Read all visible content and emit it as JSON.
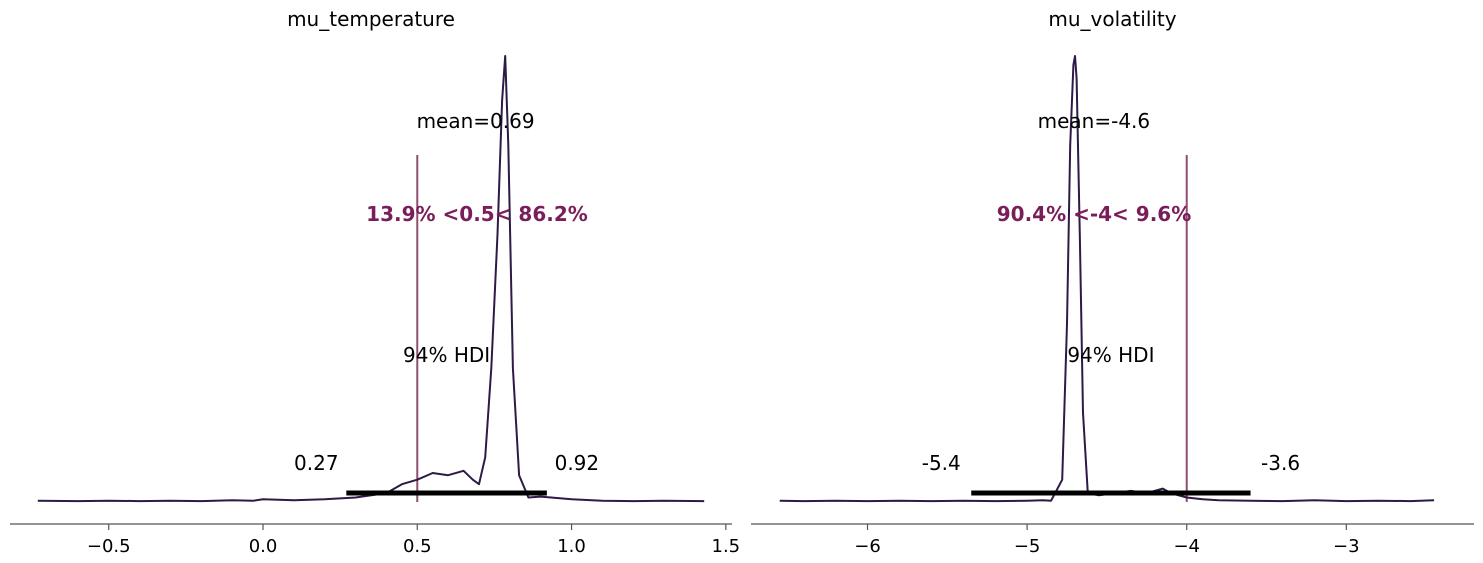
{
  "colors": {
    "kde_line": "#2e1a47",
    "reference_line": "#8c4f6e",
    "reference_text": "#7a1e5a",
    "hdi_bar": "#000000",
    "axis": "#555555"
  },
  "chart_data": [
    {
      "type": "line",
      "title": "mu_temperature",
      "xlim": [
        -0.82,
        1.52
      ],
      "xticks": [
        -0.5,
        0.0,
        0.5,
        1.0,
        1.5
      ],
      "xtick_labels": [
        "−0.5",
        "0.0",
        "0.5",
        "1.0",
        "1.5"
      ],
      "mean_label": "mean=0.69",
      "hdi_label": "94% HDI",
      "hdi": [
        0.27,
        0.92
      ],
      "hdi_low_label": "0.27",
      "hdi_high_label": "0.92",
      "ref_value": 0.5,
      "ref_label": "13.9% <0.5< 86.2%",
      "density": {
        "x": [
          -0.73,
          -0.6,
          -0.5,
          -0.4,
          -0.3,
          -0.2,
          -0.1,
          -0.03,
          0.0,
          0.1,
          0.2,
          0.3,
          0.4,
          0.45,
          0.5,
          0.55,
          0.6,
          0.65,
          0.68,
          0.7,
          0.72,
          0.74,
          0.76,
          0.775,
          0.785,
          0.795,
          0.81,
          0.83,
          0.86,
          0.9,
          1.0,
          1.1,
          1.2,
          1.3,
          1.43
        ],
        "y": [
          0.003,
          0.002,
          0.003,
          0.002,
          0.003,
          0.002,
          0.004,
          0.003,
          0.006,
          0.004,
          0.006,
          0.01,
          0.02,
          0.04,
          0.05,
          0.065,
          0.06,
          0.07,
          0.05,
          0.04,
          0.1,
          0.3,
          0.6,
          0.9,
          1.0,
          0.8,
          0.3,
          0.06,
          0.01,
          0.012,
          0.006,
          0.003,
          0.002,
          0.003,
          0.002
        ]
      }
    },
    {
      "type": "line",
      "title": "mu_volatility",
      "xlim": [
        -6.73,
        -2.2
      ],
      "xticks": [
        -6,
        -5,
        -4,
        -3
      ],
      "xtick_labels": [
        "−6",
        "−5",
        "−4",
        "−3"
      ],
      "mean_label": "mean=-4.6",
      "hdi_label": "94% HDI",
      "hdi": [
        -5.35,
        -3.6
      ],
      "hdi_low_label": "-5.4",
      "hdi_high_label": "-3.6",
      "ref_value": -4.0,
      "ref_label": "90.4% <-4< 9.6%",
      "density": {
        "x": [
          -6.55,
          -6.4,
          -6.2,
          -6.0,
          -5.8,
          -5.6,
          -5.4,
          -5.2,
          -5.0,
          -4.9,
          -4.85,
          -4.78,
          -4.75,
          -4.73,
          -4.71,
          -4.7,
          -4.69,
          -4.67,
          -4.65,
          -4.62,
          -4.55,
          -4.45,
          -4.35,
          -4.25,
          -4.15,
          -4.1,
          -4.0,
          -3.9,
          -3.8,
          -3.6,
          -3.4,
          -3.2,
          -3.0,
          -2.8,
          -2.6,
          -2.45
        ],
        "y": [
          0.003,
          0.002,
          0.003,
          0.002,
          0.003,
          0.002,
          0.003,
          0.002,
          0.003,
          0.004,
          0.003,
          0.05,
          0.4,
          0.8,
          0.98,
          1.0,
          0.95,
          0.6,
          0.2,
          0.02,
          0.015,
          0.02,
          0.025,
          0.02,
          0.03,
          0.02,
          0.01,
          0.006,
          0.004,
          0.003,
          0.002,
          0.004,
          0.002,
          0.003,
          0.002,
          0.004
        ]
      }
    }
  ]
}
